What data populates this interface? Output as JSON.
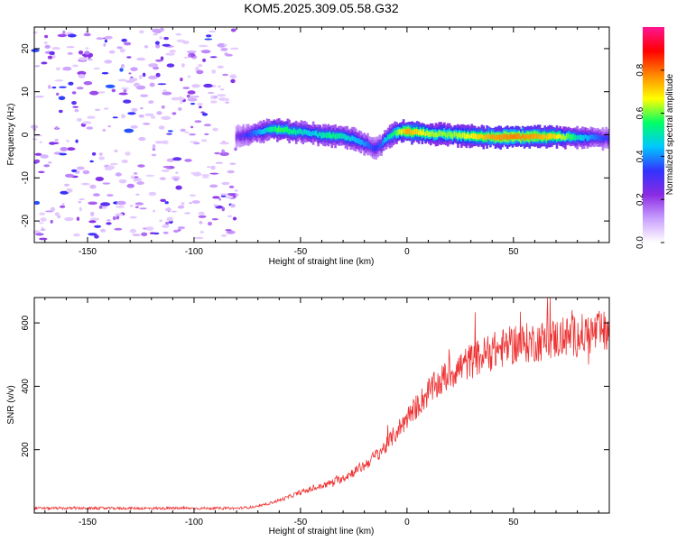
{
  "figure_title": "KOM5.2025.309.05.58.G32",
  "chart_data": [
    {
      "type": "heatmap",
      "title": "KOM5.2025.309.05.58.G32",
      "xlabel": "Height of straight line (km)",
      "ylabel": "Frequency (Hz)",
      "xlim": [
        -175,
        95
      ],
      "ylim": [
        -25,
        25
      ],
      "xticks": [
        -150,
        -100,
        -50,
        0,
        50
      ],
      "yticks": [
        -20,
        -10,
        0,
        10,
        20
      ],
      "colorbar": {
        "label": "Normalized spectral amplitude",
        "range": [
          0.0,
          1.0
        ],
        "ticks": [
          0.0,
          0.2,
          0.4,
          0.6,
          0.8
        ],
        "colors": [
          "#ffffff",
          "#c9a0ff",
          "#8a2be2",
          "#3333ff",
          "#00c8ff",
          "#00ff66",
          "#ffff00",
          "#ff8800",
          "#ff0000",
          "#ff1493"
        ]
      },
      "noise_region_x": [
        -175,
        -80
      ],
      "ridge": {
        "x": [
          -80,
          -75,
          -70,
          -65,
          -60,
          -55,
          -50,
          -45,
          -40,
          -35,
          -30,
          -25,
          -20,
          -15,
          -12,
          -10,
          -5,
          0,
          5,
          10,
          20,
          30,
          40,
          50,
          60,
          70,
          80,
          90,
          95
        ],
        "freq": [
          -0.5,
          0,
          0.5,
          1,
          1.2,
          1,
          0.6,
          0.3,
          0,
          -0.3,
          -0.5,
          -1,
          -2,
          -3,
          -2.5,
          -1,
          0.5,
          0.8,
          0.5,
          0.3,
          0,
          -0.3,
          -0.5,
          -0.5,
          -0.5,
          -0.5,
          -0.5,
          -0.8,
          -0.8
        ],
        "amplitude": [
          0.2,
          0.3,
          0.4,
          0.5,
          0.6,
          0.55,
          0.5,
          0.45,
          0.5,
          0.55,
          0.5,
          0.45,
          0.4,
          0.3,
          0.35,
          0.45,
          0.6,
          0.9,
          0.8,
          0.7,
          0.65,
          0.75,
          0.9,
          0.95,
          0.9,
          0.8,
          0.5,
          0.35,
          0.3
        ]
      }
    },
    {
      "type": "line",
      "xlabel": "Height of straight line (km)",
      "ylabel": "SNR (v/v)",
      "xlim": [
        -175,
        95
      ],
      "ylim": [
        0,
        680
      ],
      "xticks": [
        -150,
        -100,
        -50,
        0,
        50
      ],
      "yticks": [
        200,
        400,
        600
      ],
      "series": [
        {
          "name": "SNR",
          "color": "#ee3333",
          "x": [
            -175,
            -150,
            -125,
            -100,
            -80,
            -70,
            -60,
            -50,
            -40,
            -30,
            -20,
            -10,
            0,
            10,
            20,
            30,
            40,
            50,
            60,
            70,
            80,
            90,
            95
          ],
          "y": [
            15,
            15,
            15,
            15,
            15,
            20,
            40,
            65,
            85,
            110,
            150,
            210,
            300,
            380,
            440,
            480,
            510,
            530,
            540,
            550,
            560,
            570,
            570
          ]
        }
      ]
    }
  ]
}
